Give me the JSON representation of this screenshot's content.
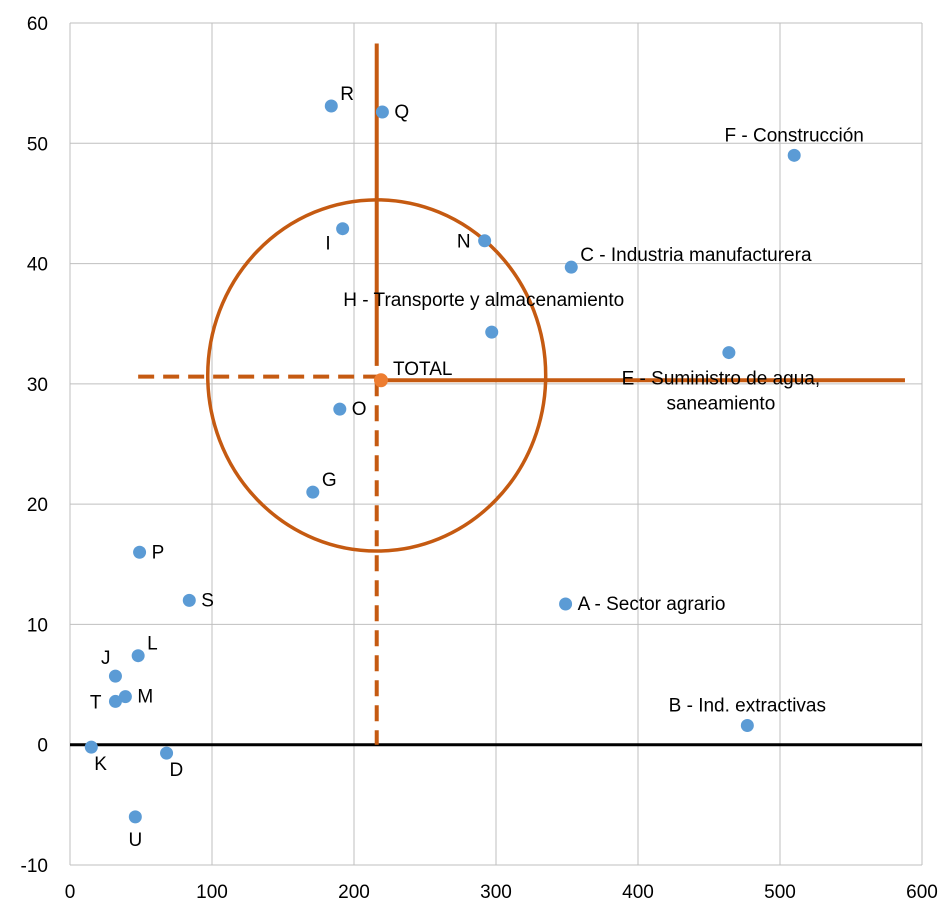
{
  "chart_data": {
    "type": "scatter",
    "title": "",
    "xlabel": "",
    "ylabel": "",
    "xlim": [
      0,
      600
    ],
    "ylim": [
      -10,
      60
    ],
    "x_ticks": [
      0,
      100,
      200,
      300,
      400,
      500,
      600
    ],
    "y_ticks": [
      -10,
      0,
      10,
      20,
      30,
      40,
      50,
      60
    ],
    "grid": true,
    "legend": "none",
    "colors": {
      "points": "#5b9bd5",
      "total": "#ed7d31",
      "overlay": "#c55a11",
      "zero_line": "#000000",
      "grid": "#bfbfbf"
    },
    "points": [
      {
        "label": "R",
        "x": 184,
        "y": 53.1,
        "pos": "right-up"
      },
      {
        "label": "Q",
        "x": 220,
        "y": 52.6,
        "pos": "right"
      },
      {
        "label": "F - Construcción",
        "x": 510,
        "y": 49,
        "pos": "up"
      },
      {
        "label": "I",
        "x": 192,
        "y": 42.9,
        "pos": "left-down"
      },
      {
        "label": "N",
        "x": 292,
        "y": 41.9,
        "pos": "left"
      },
      {
        "label": "C - Industria manufacturera",
        "x": 353,
        "y": 39.7,
        "pos": "right-up"
      },
      {
        "label": "H - Transporte y almacenamiento",
        "x": 297,
        "y": 34.3,
        "pos": "up-far"
      },
      {
        "label": "E - Suministro de agua,",
        "label2": "saneamiento",
        "x": 464,
        "y": 32.6,
        "pos": "below-two-line"
      },
      {
        "label": "O",
        "x": 190,
        "y": 27.9,
        "pos": "right"
      },
      {
        "label": "G",
        "x": 171,
        "y": 21,
        "pos": "right-up"
      },
      {
        "label": "P",
        "x": 49,
        "y": 16,
        "pos": "right"
      },
      {
        "label": "S",
        "x": 84,
        "y": 12,
        "pos": "right"
      },
      {
        "label": "A - Sector agrario",
        "x": 349,
        "y": 11.7,
        "pos": "right"
      },
      {
        "label": "L",
        "x": 48,
        "y": 7.4,
        "pos": "right-up"
      },
      {
        "label": "J",
        "x": 32,
        "y": 5.7,
        "pos": "left-up"
      },
      {
        "label": "M",
        "x": 39,
        "y": 4,
        "pos": "right"
      },
      {
        "label": "T",
        "x": 32,
        "y": 3.6,
        "pos": "left"
      },
      {
        "label": "B - Ind. extractivas",
        "x": 477,
        "y": 1.6,
        "pos": "up"
      },
      {
        "label": "K",
        "x": 15,
        "y": -0.2,
        "pos": "below-right"
      },
      {
        "label": "D",
        "x": 68,
        "y": -0.7,
        "pos": "below-right"
      },
      {
        "label": "U",
        "x": 46,
        "y": -6,
        "pos": "below"
      }
    ],
    "total": {
      "label": "TOTAL",
      "x": 219,
      "y": 30.3
    },
    "overlay": {
      "vertical_solid": {
        "x": 216,
        "y_from": 31.5,
        "y_to": 58.3
      },
      "vertical_dashed": {
        "x": 216,
        "y_from": 0,
        "y_to": 30.3
      },
      "horizontal_solid": {
        "x_from": 219,
        "x_to": 588,
        "y": 30.3
      },
      "horizontal_dashed": {
        "x_from": 48,
        "x_to": 219,
        "y": 30.6
      },
      "circle": {
        "cx": 216,
        "cy": 30.7,
        "rx": 119,
        "ry": 14.6
      }
    }
  }
}
